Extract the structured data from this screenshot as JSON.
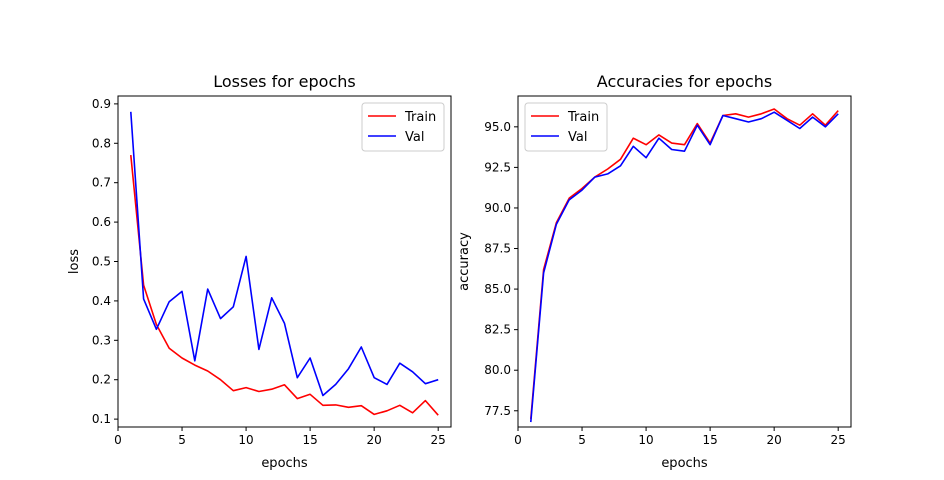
{
  "chart_data": [
    {
      "type": "line",
      "title": "Losses for epochs",
      "xlabel": "epochs",
      "ylabel": "loss",
      "xlim": [
        0,
        26
      ],
      "ylim": [
        0.08,
        0.92
      ],
      "xticks": [
        0,
        5,
        10,
        15,
        20,
        25
      ],
      "yticks": [
        0.1,
        0.2,
        0.3,
        0.4,
        0.5,
        0.6,
        0.7,
        0.8,
        0.9
      ],
      "ytick_labels": [
        "0.1",
        "0.2",
        "0.3",
        "0.4",
        "0.5",
        "0.6",
        "0.7",
        "0.8",
        "0.9"
      ],
      "legend_position": "top-right",
      "grid": false,
      "x": [
        1,
        2,
        3,
        4,
        5,
        6,
        7,
        8,
        9,
        10,
        11,
        12,
        13,
        14,
        15,
        16,
        17,
        18,
        19,
        20,
        21,
        22,
        23,
        24,
        25
      ],
      "series": [
        {
          "name": "Train",
          "color": "#ff0000",
          "values": [
            0.77,
            0.44,
            0.34,
            0.28,
            0.255,
            0.237,
            0.222,
            0.2,
            0.172,
            0.18,
            0.17,
            0.176,
            0.187,
            0.152,
            0.163,
            0.135,
            0.136,
            0.13,
            0.134,
            0.112,
            0.121,
            0.135,
            0.116,
            0.147,
            0.11
          ]
        },
        {
          "name": "Val",
          "color": "#0000ff",
          "values": [
            0.88,
            0.405,
            0.328,
            0.398,
            0.424,
            0.248,
            0.43,
            0.355,
            0.385,
            0.513,
            0.277,
            0.408,
            0.343,
            0.205,
            0.255,
            0.16,
            0.188,
            0.228,
            0.283,
            0.205,
            0.188,
            0.242,
            0.22,
            0.19,
            0.2
          ]
        }
      ]
    },
    {
      "type": "line",
      "title": "Accuracies for epochs",
      "xlabel": "epochs",
      "ylabel": "accuracy",
      "xlim": [
        0,
        26
      ],
      "ylim": [
        76.5,
        96.9
      ],
      "xticks": [
        0,
        5,
        10,
        15,
        20,
        25
      ],
      "yticks": [
        77.5,
        80.0,
        82.5,
        85.0,
        87.5,
        90.0,
        92.5,
        95.0
      ],
      "ytick_labels": [
        "77.5",
        "80.0",
        "82.5",
        "85.0",
        "87.5",
        "90.0",
        "92.5",
        "95.0"
      ],
      "legend_position": "top-left",
      "grid": false,
      "x": [
        1,
        2,
        3,
        4,
        5,
        6,
        7,
        8,
        9,
        10,
        11,
        12,
        13,
        14,
        15,
        16,
        17,
        18,
        19,
        20,
        21,
        22,
        23,
        24,
        25
      ],
      "series": [
        {
          "name": "Train",
          "color": "#ff0000",
          "values": [
            77.0,
            86.2,
            89.1,
            90.6,
            91.2,
            91.9,
            92.4,
            93.0,
            94.3,
            93.9,
            94.5,
            94.0,
            93.9,
            95.2,
            94.0,
            95.7,
            95.8,
            95.6,
            95.8,
            96.1,
            95.5,
            95.1,
            95.8,
            95.1,
            96.0
          ]
        },
        {
          "name": "Val",
          "color": "#0000ff",
          "values": [
            76.8,
            86.0,
            89.0,
            90.5,
            91.1,
            91.9,
            92.1,
            92.6,
            93.8,
            93.1,
            94.3,
            93.6,
            93.5,
            95.1,
            93.9,
            95.7,
            95.5,
            95.3,
            95.5,
            95.9,
            95.4,
            94.9,
            95.6,
            95.0,
            95.8
          ]
        }
      ]
    }
  ]
}
